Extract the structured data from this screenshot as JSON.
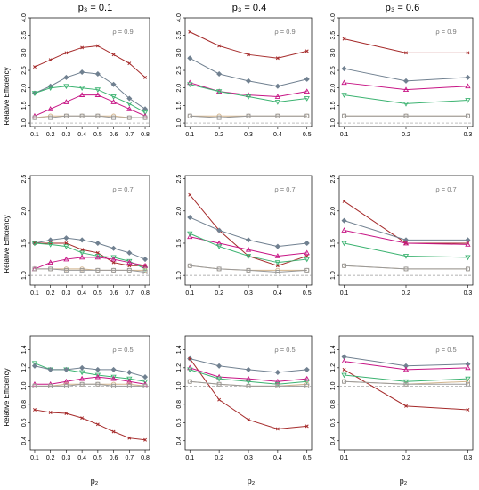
{
  "colors": {
    "crossx": "#A52A2A",
    "diamond": "#708090",
    "triangle": "#C71585",
    "tridown": "#3CB371",
    "circle": "#D2B48C",
    "square": "#999999",
    "refline": "#999999",
    "rho_text": "#777777"
  },
  "column_titles": [
    "p₃ = 0.1",
    "p₃ = 0.4",
    "p₃ = 0.6"
  ],
  "row_rho_labels": [
    "ρ = 0.9",
    "ρ = 0.7",
    "ρ = 0.5"
  ],
  "y_label": "Relative Efficiency",
  "x_label": "p₂",
  "chart_data": [
    {
      "type": "line",
      "row": 0,
      "col": 0,
      "x": [
        0.1,
        0.2,
        0.3,
        0.4,
        0.5,
        0.6,
        0.7,
        0.8
      ],
      "xticks": [
        "0.1",
        "0.2",
        "0.3",
        "0.4",
        "0.5",
        "0.6",
        "0.7",
        "0.8"
      ],
      "ylim": [
        0.9,
        4.0
      ],
      "yticks": [
        "1.0",
        "1.5",
        "2.0",
        "2.5",
        "3.0",
        "3.5",
        "4.0"
      ],
      "series": [
        {
          "marker": "crossx",
          "values": [
            2.6,
            2.8,
            3.0,
            3.15,
            3.2,
            2.95,
            2.7,
            2.3
          ]
        },
        {
          "marker": "diamond",
          "values": [
            1.85,
            2.05,
            2.3,
            2.45,
            2.4,
            2.1,
            1.7,
            1.4
          ]
        },
        {
          "marker": "tridown",
          "values": [
            1.85,
            2.0,
            2.05,
            2.0,
            1.95,
            1.75,
            1.55,
            1.3
          ]
        },
        {
          "marker": "triangle",
          "values": [
            1.2,
            1.4,
            1.6,
            1.8,
            1.8,
            1.6,
            1.4,
            1.2
          ]
        },
        {
          "marker": "circle",
          "values": [
            1.15,
            1.2,
            1.2,
            1.2,
            1.2,
            1.2,
            1.15,
            1.15
          ]
        },
        {
          "marker": "square",
          "values": [
            1.15,
            1.15,
            1.2,
            1.2,
            1.2,
            1.15,
            1.15,
            1.15
          ]
        }
      ]
    },
    {
      "type": "line",
      "row": 0,
      "col": 1,
      "x": [
        0.1,
        0.2,
        0.3,
        0.4,
        0.5
      ],
      "xticks": [
        "0.1",
        "0.2",
        "0.3",
        "0.4",
        "0.5"
      ],
      "ylim": [
        0.9,
        4.0
      ],
      "yticks": [
        "1.0",
        "1.5",
        "2.0",
        "2.5",
        "3.0",
        "3.5",
        "4.0"
      ],
      "series": [
        {
          "marker": "crossx",
          "values": [
            3.6,
            3.2,
            2.95,
            2.85,
            3.05
          ]
        },
        {
          "marker": "diamond",
          "values": [
            2.85,
            2.4,
            2.2,
            2.05,
            2.25
          ]
        },
        {
          "marker": "triangle",
          "values": [
            2.15,
            1.9,
            1.8,
            1.75,
            1.9
          ]
        },
        {
          "marker": "tridown",
          "values": [
            2.1,
            1.9,
            1.75,
            1.6,
            1.7
          ]
        },
        {
          "marker": "circle",
          "values": [
            1.2,
            1.2,
            1.2,
            1.2,
            1.2
          ]
        },
        {
          "marker": "square",
          "values": [
            1.2,
            1.15,
            1.2,
            1.2,
            1.2
          ]
        }
      ]
    },
    {
      "type": "line",
      "row": 0,
      "col": 2,
      "x": [
        0.1,
        0.2,
        0.3
      ],
      "xticks": [
        "0.1",
        "0.2",
        "0.3"
      ],
      "ylim": [
        0.9,
        4.0
      ],
      "yticks": [
        "1.0",
        "1.5",
        "2.0",
        "2.5",
        "3.0",
        "3.5",
        "4.0"
      ],
      "series": [
        {
          "marker": "crossx",
          "values": [
            3.4,
            3.0,
            3.0
          ]
        },
        {
          "marker": "diamond",
          "values": [
            2.55,
            2.2,
            2.3
          ]
        },
        {
          "marker": "triangle",
          "values": [
            2.15,
            1.95,
            2.05
          ]
        },
        {
          "marker": "tridown",
          "values": [
            1.8,
            1.55,
            1.65
          ]
        },
        {
          "marker": "circle",
          "values": [
            1.2,
            1.2,
            1.2
          ]
        },
        {
          "marker": "square",
          "values": [
            1.2,
            1.2,
            1.2
          ]
        }
      ]
    },
    {
      "type": "line",
      "row": 1,
      "col": 0,
      "x": [
        0.1,
        0.2,
        0.3,
        0.4,
        0.5,
        0.6,
        0.7,
        0.8
      ],
      "xticks": [
        "0.1",
        "0.2",
        "0.3",
        "0.4",
        "0.5",
        "0.6",
        "0.7",
        "0.8"
      ],
      "ylim": [
        0.85,
        2.55
      ],
      "yticks": [
        "1.0",
        "1.5",
        "2.0",
        "2.5"
      ],
      "series": [
        {
          "marker": "diamond",
          "values": [
            1.5,
            1.55,
            1.58,
            1.55,
            1.5,
            1.42,
            1.35,
            1.25
          ]
        },
        {
          "marker": "crossx",
          "values": [
            1.5,
            1.5,
            1.5,
            1.4,
            1.35,
            1.2,
            1.15,
            1.15
          ]
        },
        {
          "marker": "tridown",
          "values": [
            1.5,
            1.48,
            1.45,
            1.35,
            1.3,
            1.28,
            1.22,
            1.1
          ]
        },
        {
          "marker": "triangle",
          "values": [
            1.1,
            1.2,
            1.25,
            1.28,
            1.28,
            1.25,
            1.2,
            1.15
          ]
        },
        {
          "marker": "circle",
          "values": [
            1.1,
            1.1,
            1.1,
            1.1,
            1.08,
            1.08,
            1.08,
            1.08
          ]
        },
        {
          "marker": "square",
          "values": [
            1.1,
            1.1,
            1.08,
            1.08,
            1.08,
            1.08,
            1.08,
            1.05
          ]
        }
      ]
    },
    {
      "type": "line",
      "row": 1,
      "col": 1,
      "x": [
        0.1,
        0.2,
        0.3,
        0.4,
        0.5
      ],
      "xticks": [
        "0.1",
        "0.2",
        "0.3",
        "0.4",
        "0.5"
      ],
      "ylim": [
        0.85,
        2.55
      ],
      "yticks": [
        "1.0",
        "1.5",
        "2.0",
        "2.5"
      ],
      "series": [
        {
          "marker": "crossx",
          "values": [
            2.25,
            1.7,
            1.3,
            1.15,
            1.3
          ]
        },
        {
          "marker": "diamond",
          "values": [
            1.9,
            1.7,
            1.55,
            1.45,
            1.5
          ]
        },
        {
          "marker": "triangle",
          "values": [
            1.6,
            1.5,
            1.4,
            1.3,
            1.35
          ]
        },
        {
          "marker": "tridown",
          "values": [
            1.65,
            1.45,
            1.3,
            1.2,
            1.25
          ]
        },
        {
          "marker": "circle",
          "values": [
            1.15,
            1.1,
            1.08,
            1.08,
            1.08
          ]
        },
        {
          "marker": "square",
          "values": [
            1.15,
            1.1,
            1.08,
            1.05,
            1.08
          ]
        }
      ]
    },
    {
      "type": "line",
      "row": 1,
      "col": 2,
      "x": [
        0.1,
        0.2,
        0.3
      ],
      "xticks": [
        "0.1",
        "0.2",
        "0.3"
      ],
      "ylim": [
        0.85,
        2.55
      ],
      "yticks": [
        "1.0",
        "1.5",
        "2.0",
        "2.5"
      ],
      "series": [
        {
          "marker": "crossx",
          "values": [
            2.15,
            1.5,
            1.5
          ]
        },
        {
          "marker": "diamond",
          "values": [
            1.85,
            1.55,
            1.55
          ]
        },
        {
          "marker": "triangle",
          "values": [
            1.7,
            1.5,
            1.48
          ]
        },
        {
          "marker": "tridown",
          "values": [
            1.5,
            1.3,
            1.28
          ]
        },
        {
          "marker": "circle",
          "values": [
            1.15,
            1.1,
            1.1
          ]
        },
        {
          "marker": "square",
          "values": [
            1.15,
            1.1,
            1.1
          ]
        }
      ]
    },
    {
      "type": "line",
      "row": 2,
      "col": 0,
      "x": [
        0.1,
        0.2,
        0.3,
        0.4,
        0.5,
        0.6,
        0.7,
        0.8
      ],
      "xticks": [
        "0.1",
        "0.2",
        "0.3",
        "0.4",
        "0.5",
        "0.6",
        "0.7",
        "0.8"
      ],
      "ylim": [
        0.3,
        1.55
      ],
      "yticks": [
        "0.4",
        "0.6",
        "0.8",
        "1.0",
        "1.2",
        "1.4"
      ],
      "series": [
        {
          "marker": "tridown",
          "values": [
            1.25,
            1.18,
            1.18,
            1.15,
            1.12,
            1.1,
            1.08,
            1.05
          ]
        },
        {
          "marker": "diamond",
          "values": [
            1.22,
            1.18,
            1.18,
            1.2,
            1.18,
            1.18,
            1.15,
            1.1
          ]
        },
        {
          "marker": "triangle",
          "values": [
            1.02,
            1.02,
            1.05,
            1.08,
            1.1,
            1.08,
            1.05,
            1.02
          ]
        },
        {
          "marker": "circle",
          "values": [
            1.0,
            1.0,
            1.02,
            1.02,
            1.02,
            1.02,
            1.02,
            1.0
          ]
        },
        {
          "marker": "square",
          "values": [
            1.0,
            1.0,
            1.0,
            1.02,
            1.02,
            1.0,
            1.0,
            1.0
          ]
        },
        {
          "marker": "crossx",
          "values": [
            0.74,
            0.71,
            0.7,
            0.65,
            0.58,
            0.5,
            0.43,
            0.41
          ]
        }
      ]
    },
    {
      "type": "line",
      "row": 2,
      "col": 1,
      "x": [
        0.1,
        0.2,
        0.3,
        0.4,
        0.5
      ],
      "xticks": [
        "0.1",
        "0.2",
        "0.3",
        "0.4",
        "0.5"
      ],
      "ylim": [
        0.3,
        1.55
      ],
      "yticks": [
        "0.4",
        "0.6",
        "0.8",
        "1.0",
        "1.2",
        "1.4"
      ],
      "series": [
        {
          "marker": "diamond",
          "values": [
            1.3,
            1.22,
            1.18,
            1.15,
            1.18
          ]
        },
        {
          "marker": "crossx",
          "values": [
            1.3,
            0.85,
            0.63,
            0.53,
            0.56
          ]
        },
        {
          "marker": "triangle",
          "values": [
            1.2,
            1.1,
            1.08,
            1.05,
            1.08
          ]
        },
        {
          "marker": "tridown",
          "values": [
            1.18,
            1.08,
            1.05,
            1.02,
            1.05
          ]
        },
        {
          "marker": "circle",
          "values": [
            1.05,
            1.02,
            1.0,
            1.0,
            1.02
          ]
        },
        {
          "marker": "square",
          "values": [
            1.05,
            1.02,
            1.0,
            1.0,
            1.0
          ]
        }
      ]
    },
    {
      "type": "line",
      "row": 2,
      "col": 2,
      "x": [
        0.1,
        0.2,
        0.3
      ],
      "xticks": [
        "0.1",
        "0.2",
        "0.3"
      ],
      "ylim": [
        0.3,
        1.55
      ],
      "yticks": [
        "0.4",
        "0.6",
        "0.8",
        "1.0",
        "1.2",
        "1.4"
      ],
      "series": [
        {
          "marker": "diamond",
          "values": [
            1.32,
            1.22,
            1.24
          ]
        },
        {
          "marker": "triangle",
          "values": [
            1.27,
            1.18,
            1.2
          ]
        },
        {
          "marker": "crossx",
          "values": [
            1.18,
            0.78,
            0.74
          ]
        },
        {
          "marker": "tridown",
          "values": [
            1.12,
            1.05,
            1.08
          ]
        },
        {
          "marker": "circle",
          "values": [
            1.05,
            1.02,
            1.05
          ]
        },
        {
          "marker": "square",
          "values": [
            1.05,
            1.02,
            1.02
          ]
        }
      ]
    }
  ]
}
